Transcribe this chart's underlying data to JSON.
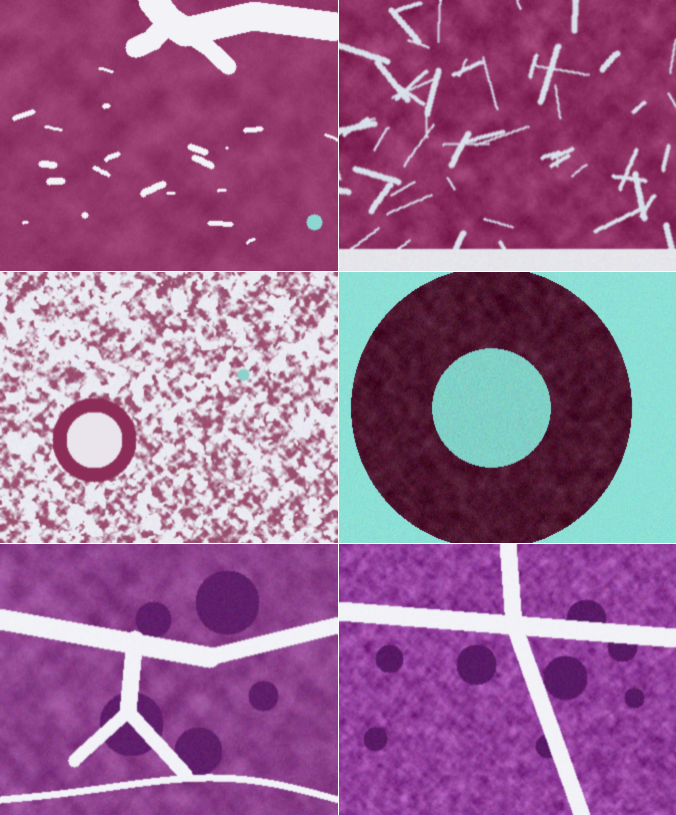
{
  "figsize": [
    6.76,
    8.15
  ],
  "dpi": 100,
  "nrows": 3,
  "ncols": 2,
  "hspace": 0.004,
  "wspace": 0.004,
  "liver_low": {
    "base_rgb": [
      0.58,
      0.22,
      0.42
    ],
    "white_space_color": [
      0.95,
      0.95,
      0.97
    ],
    "teal_spot": [
      0.55,
      0.85,
      0.82
    ]
  },
  "liver_high": {
    "base_rgb": [
      0.55,
      0.18,
      0.38
    ],
    "sinusoid_color": [
      0.85,
      0.88,
      0.92
    ]
  },
  "lung": {
    "base_rgb": [
      0.55,
      0.2,
      0.35
    ],
    "alveoli_color": [
      0.92,
      0.92,
      0.95
    ],
    "teal_spot": [
      0.55,
      0.82,
      0.8
    ]
  },
  "vessel": {
    "bg_color": [
      0.55,
      0.88,
      0.84
    ],
    "tissue_color": [
      0.3,
      0.08,
      0.18
    ],
    "lumen_color": [
      0.5,
      0.82,
      0.78
    ]
  },
  "spleen_low": {
    "base_rgb": [
      0.55,
      0.25,
      0.55
    ],
    "trabecular_color": [
      0.95,
      0.95,
      0.97
    ],
    "dark_zone": [
      0.38,
      0.12,
      0.42
    ]
  },
  "spleen_high": {
    "base_rgb": [
      0.58,
      0.25,
      0.62
    ],
    "trabecular_color": [
      0.95,
      0.95,
      0.97
    ],
    "dark_zone": [
      0.35,
      0.1,
      0.4
    ]
  }
}
